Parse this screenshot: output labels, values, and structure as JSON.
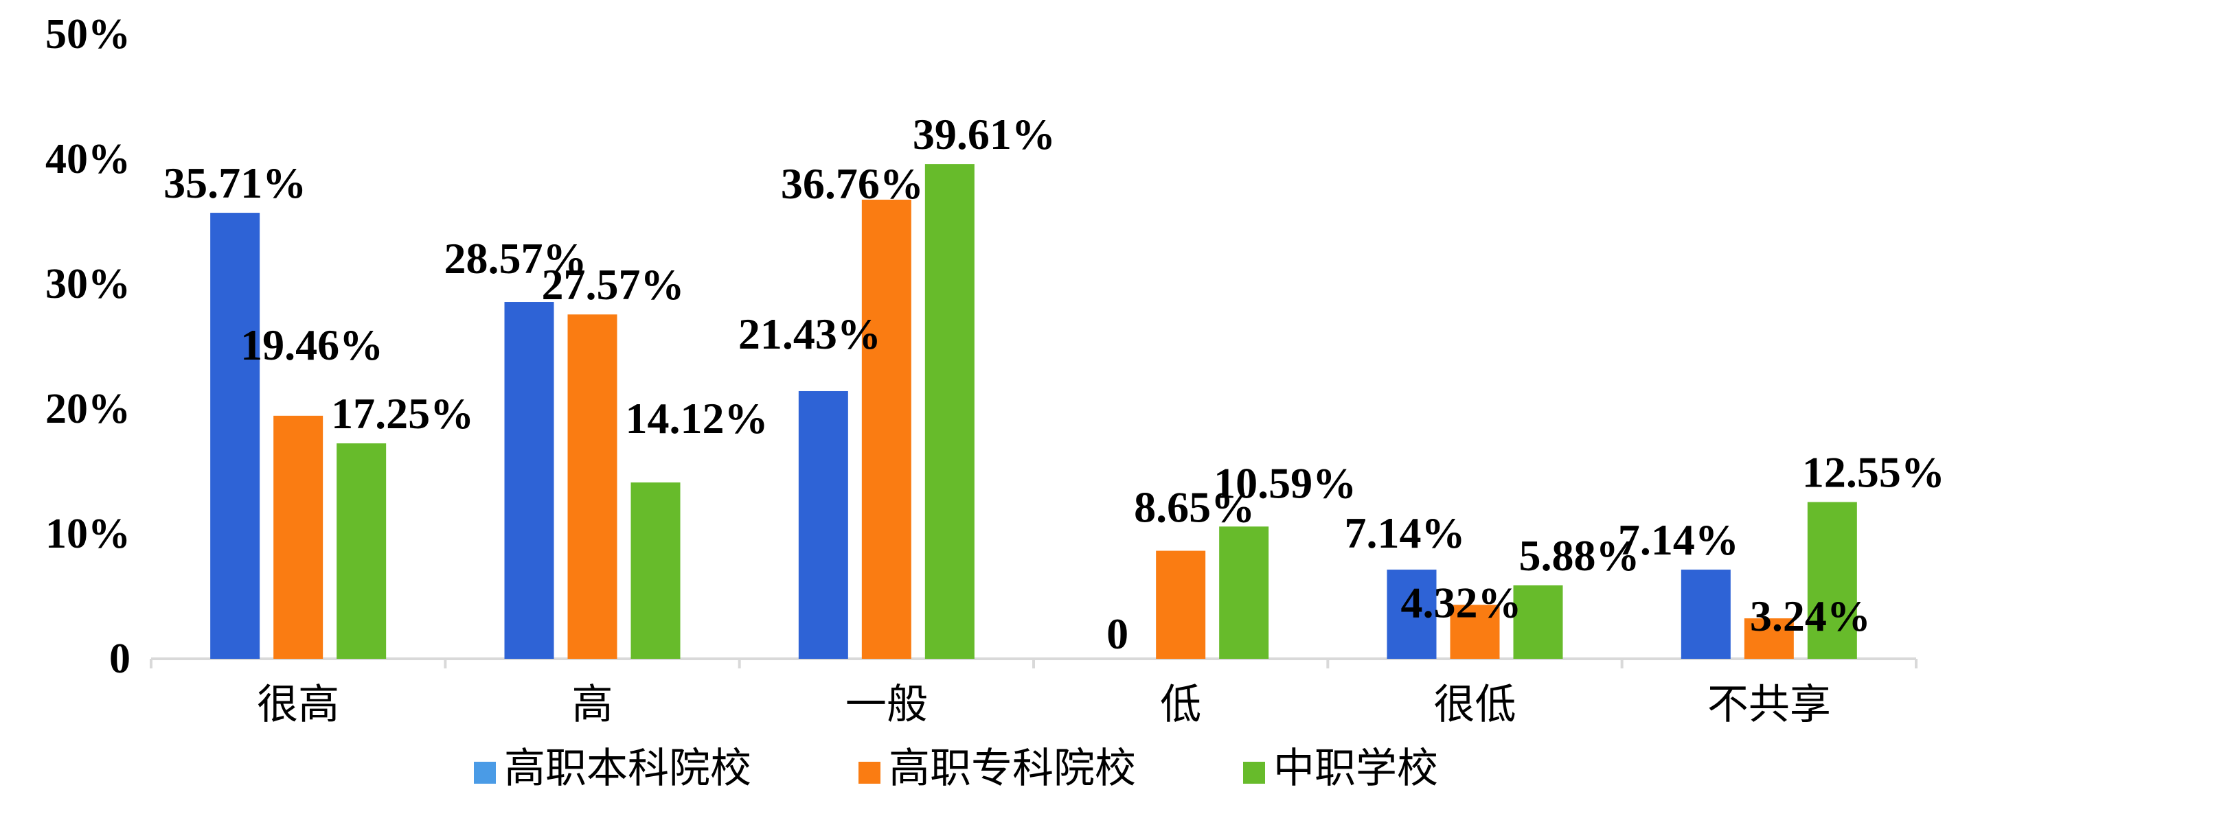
{
  "chart_data": {
    "type": "bar",
    "categories": [
      "很高",
      "高",
      "一般",
      "低",
      "很低",
      "不共享"
    ],
    "series": [
      {
        "name": "高职本科院校",
        "color": "#2e63d6",
        "legend_color": "#4a9be6",
        "values": [
          35.71,
          28.57,
          21.43,
          0,
          7.14,
          7.14
        ],
        "labels": [
          "35.71%",
          "28.57%",
          "21.43%",
          "0",
          "7.14%",
          "7.14%"
        ]
      },
      {
        "name": "高职专科院校",
        "color": "#fa7c12",
        "legend_color": "#fa7c12",
        "values": [
          19.46,
          27.57,
          36.76,
          8.65,
          4.32,
          3.24
        ],
        "labels": [
          "19.46%",
          "27.57%",
          "36.76%",
          "8.65%",
          "4.32%",
          "3.24%"
        ]
      },
      {
        "name": "中职学校",
        "color": "#67bb2b",
        "legend_color": "#67bb2b",
        "values": [
          17.25,
          14.12,
          39.61,
          10.59,
          5.88,
          12.55
        ],
        "labels": [
          "17.25%",
          "14.12%",
          "39.61%",
          "10.59%",
          "5.88%",
          "12.55%"
        ]
      }
    ],
    "y_ticks": [
      "0",
      "10%",
      "20%",
      "30%",
      "40%",
      "50%"
    ],
    "ylim": [
      0,
      50
    ],
    "grid": false,
    "legend_position": "bottom",
    "title": "",
    "xlabel": "",
    "ylabel": ""
  }
}
